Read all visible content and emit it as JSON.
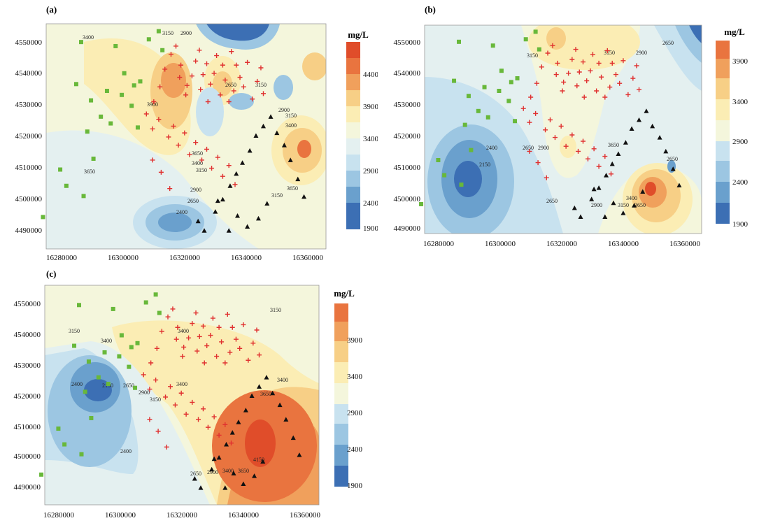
{
  "panels": [
    {
      "label": "(a)",
      "x_ticks": [
        "16280000",
        "16300000",
        "16320000",
        "16340000",
        "16360000"
      ],
      "y_ticks": [
        "4550000",
        "4540000",
        "4530000",
        "4520000",
        "4510000",
        "4500000",
        "4490000"
      ],
      "unit": "mg/L",
      "colorbar_ticks": [
        "4400",
        "3900",
        "3400",
        "2900",
        "2400",
        "1900"
      ],
      "contour_labels": [
        "3400",
        "3150",
        "2900",
        "3900",
        "3650",
        "3400",
        "3150",
        "2900",
        "2650",
        "2400",
        "3650",
        "2900",
        "3150",
        "3400",
        "3650",
        "2650",
        "3150",
        "3150"
      ]
    },
    {
      "label": "(b)",
      "x_ticks": [
        "16280000",
        "16300000",
        "16320000",
        "16340000",
        "16360000"
      ],
      "y_ticks": [
        "4550000",
        "4540000",
        "4530000",
        "4520000",
        "4510000",
        "4500000",
        "4490000"
      ],
      "unit": "mg/L",
      "colorbar_ticks": [
        "3900",
        "3400",
        "2900",
        "2400",
        "1900"
      ],
      "contour_labels": [
        "3150",
        "3150",
        "2900",
        "2650",
        "2400",
        "2150",
        "2650",
        "2900",
        "3650",
        "2650",
        "2900",
        "3150",
        "3400",
        "3650",
        "2650"
      ]
    },
    {
      "label": "(c)",
      "x_ticks": [
        "16280000",
        "16300000",
        "16320000",
        "16340000",
        "16360000"
      ],
      "y_ticks": [
        "4550000",
        "4540000",
        "4530000",
        "4520000",
        "4510000",
        "4500000",
        "4490000"
      ],
      "unit": "mg/L",
      "colorbar_ticks": [
        "3900",
        "3400",
        "2900",
        "2400",
        "1900"
      ],
      "contour_labels": [
        "3150",
        "3400",
        "3400",
        "3150",
        "3400",
        "3150",
        "2900",
        "2650",
        "2400",
        "2150",
        "2400",
        "3400",
        "3650",
        "2650",
        "2900",
        "3400",
        "3650",
        "4150"
      ]
    }
  ],
  "colors": {
    "c1900": "#3c6fb4",
    "c2150": "#6aa0cd",
    "c2400": "#9cc6e2",
    "c2650": "#c8e2ef",
    "c2900": "#e4f0f0",
    "c3150": "#f4f6dc",
    "c3400": "#fbedb4",
    "c3650": "#f7cf86",
    "c3900": "#f0a05c",
    "c4150": "#e9743f",
    "c4400": "#e04d2a",
    "square": "#68b83a",
    "cross": "#e0302f",
    "triangle": "#111111"
  }
}
